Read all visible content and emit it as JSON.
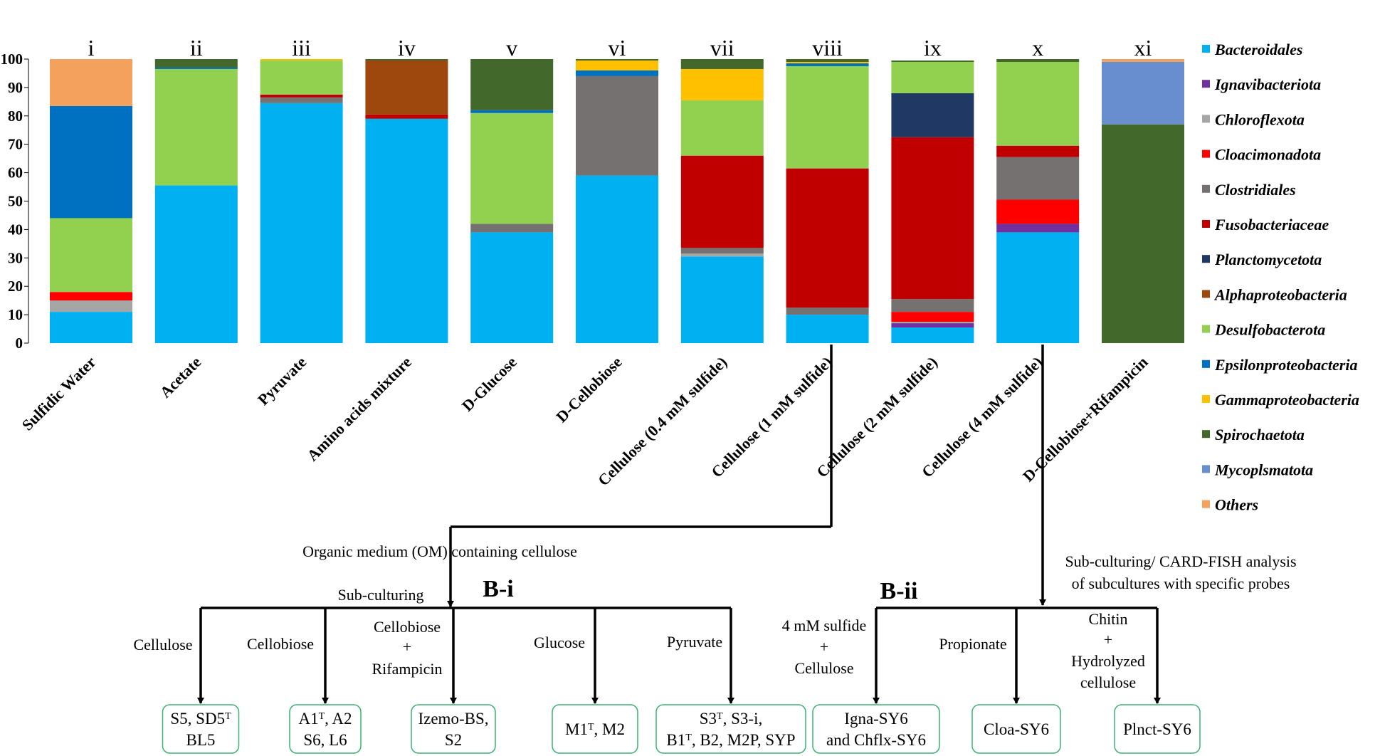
{
  "chart_data": {
    "type": "bar",
    "stacked": true,
    "ylim": [
      0,
      100
    ],
    "yticks": [
      0,
      10,
      20,
      30,
      40,
      50,
      60,
      70,
      80,
      90,
      100
    ],
    "numerals": [
      "i",
      "ii",
      "iii",
      "iv",
      "v",
      "vi",
      "vii",
      "viii",
      "ix",
      "x",
      "xi"
    ],
    "categories": [
      "Sulfidic Water",
      "Acetate",
      "Pyruvate",
      "Amino acids mixture",
      "D-Glucose",
      "D-Cellobiose",
      "Cellulose (0.4 mM sulfide)",
      "Cellulose (1 mM sulfide)",
      "Cellulose (2 mM sulfide)",
      "Cellulose (4 mM sulfide)",
      "D-Cellobiose+Rifampicin"
    ],
    "legend_position": "right",
    "series": [
      {
        "name": "Bacteroidales",
        "color": "#00B0F0",
        "values": [
          11,
          55.5,
          84.5,
          79,
          39,
          59,
          30.5,
          10,
          5.5,
          39,
          0
        ]
      },
      {
        "name": "Ignavibacteriota",
        "color": "#7030A0",
        "values": [
          0,
          0,
          0,
          0,
          0,
          0,
          0,
          0,
          1.5,
          3,
          0
        ]
      },
      {
        "name": "Chloroflexota",
        "color": "#A6A6A6",
        "values": [
          4,
          0,
          0,
          0,
          0,
          0,
          1,
          0,
          0.5,
          0,
          0
        ]
      },
      {
        "name": "Cloacimonadota",
        "color": "#FF0000",
        "values": [
          3,
          0,
          0,
          0,
          0,
          0,
          0,
          0,
          3.5,
          8.5,
          0
        ]
      },
      {
        "name": "Clostridiales",
        "color": "#767171",
        "values": [
          0,
          0,
          2,
          0,
          3,
          35,
          2,
          2.5,
          4.5,
          15,
          0
        ]
      },
      {
        "name": "Fusobacteriaceae",
        "color": "#C00000",
        "values": [
          0,
          0,
          1,
          1.5,
          0,
          0,
          32.5,
          49,
          57,
          4,
          0
        ]
      },
      {
        "name": "Planctomycetota",
        "color": "#203864",
        "values": [
          0,
          0,
          0,
          0,
          0,
          0,
          0,
          0,
          15.5,
          0,
          0
        ]
      },
      {
        "name": "Alphaproteobacteria",
        "color": "#9E480E",
        "values": [
          0,
          0,
          0,
          19,
          0,
          0,
          0,
          0,
          0,
          0,
          0
        ]
      },
      {
        "name": "Desulfobacterota",
        "color": "#92D050",
        "values": [
          26,
          41,
          12,
          0,
          39,
          0,
          19.5,
          36,
          11,
          29.5,
          0
        ]
      },
      {
        "name": "Epsilonproteobacteria",
        "color": "#0070C0",
        "values": [
          39.5,
          0.5,
          0,
          0,
          1,
          2,
          0,
          1,
          0,
          0,
          0
        ]
      },
      {
        "name": "Gammaproteobacteria",
        "color": "#FFC000",
        "values": [
          0,
          0,
          0.5,
          0,
          0,
          3.5,
          11,
          0.5,
          0,
          0,
          0
        ]
      },
      {
        "name": "Spirochaetota",
        "color": "#43682B",
        "values": [
          0,
          3,
          0,
          0.5,
          18,
          0.5,
          3.5,
          1,
          0.5,
          1,
          77
        ]
      },
      {
        "name": "Mycoplsmatota",
        "color": "#698ED0",
        "values": [
          0,
          0,
          0,
          0,
          0,
          0,
          0,
          0,
          0,
          0,
          22
        ]
      },
      {
        "name": "Others",
        "color": "#F4A15D",
        "values": [
          16.5,
          0,
          0,
          0,
          0,
          0,
          0,
          0,
          0,
          0,
          1
        ]
      }
    ]
  },
  "flow": {
    "left_medium_label": "Organic medium (OM) containing cellulose",
    "left_subculture_label": "Sub-culturing",
    "left_section_label": "B-i",
    "right_subculture_label": [
      "Sub-culturing/ CARD-FISH analysis",
      "of subcultures with specific probes"
    ],
    "right_section_label": "B-ii",
    "left_branches": [
      {
        "condition": [
          "Cellulose"
        ],
        "strains": [
          [
            [
              "S5, SD5",
              ""
            ],
            [
              "T",
              "sup"
            ]
          ],
          [
            [
              "BL5",
              ""
            ]
          ]
        ]
      },
      {
        "condition": [
          "Cellobiose"
        ],
        "strains": [
          [
            [
              "A1",
              ""
            ],
            [
              "T",
              "sup"
            ],
            [
              ", A2",
              ""
            ]
          ],
          [
            [
              "S6, L6",
              ""
            ]
          ]
        ]
      },
      {
        "condition": [
          "Cellobiose",
          "+",
          "Rifampicin"
        ],
        "strains": [
          [
            [
              "Izemo-BS,",
              ""
            ]
          ],
          [
            [
              "S2",
              ""
            ]
          ]
        ]
      },
      {
        "condition": [
          "Glucose"
        ],
        "strains": [
          [
            [
              "M1",
              ""
            ],
            [
              "T",
              "sup"
            ],
            [
              ", M2",
              ""
            ]
          ]
        ]
      },
      {
        "condition": [
          "Pyruvate"
        ],
        "strains": [
          [
            [
              "S3",
              ""
            ],
            [
              "T",
              "sup"
            ],
            [
              ", S3-i,",
              ""
            ]
          ],
          [
            [
              "B1",
              ""
            ],
            [
              "T",
              "sup"
            ],
            [
              ", B2, M2P, SYP",
              ""
            ]
          ]
        ]
      }
    ],
    "right_branches": [
      {
        "condition": [
          "4 mM sulfide",
          "+",
          "Cellulose"
        ],
        "strains": [
          [
            [
              "Igna-SY6",
              ""
            ]
          ],
          [
            [
              "and Chflx-SY6",
              ""
            ]
          ]
        ]
      },
      {
        "condition": [
          "Propionate"
        ],
        "strains": [
          [
            [
              "Cloa-SY6",
              ""
            ]
          ]
        ]
      },
      {
        "condition": [
          "Chitin",
          "+",
          "Hydrolyzed",
          "cellulose"
        ],
        "strains": [
          [
            [
              "Plnct-SY6",
              ""
            ]
          ]
        ]
      }
    ]
  }
}
